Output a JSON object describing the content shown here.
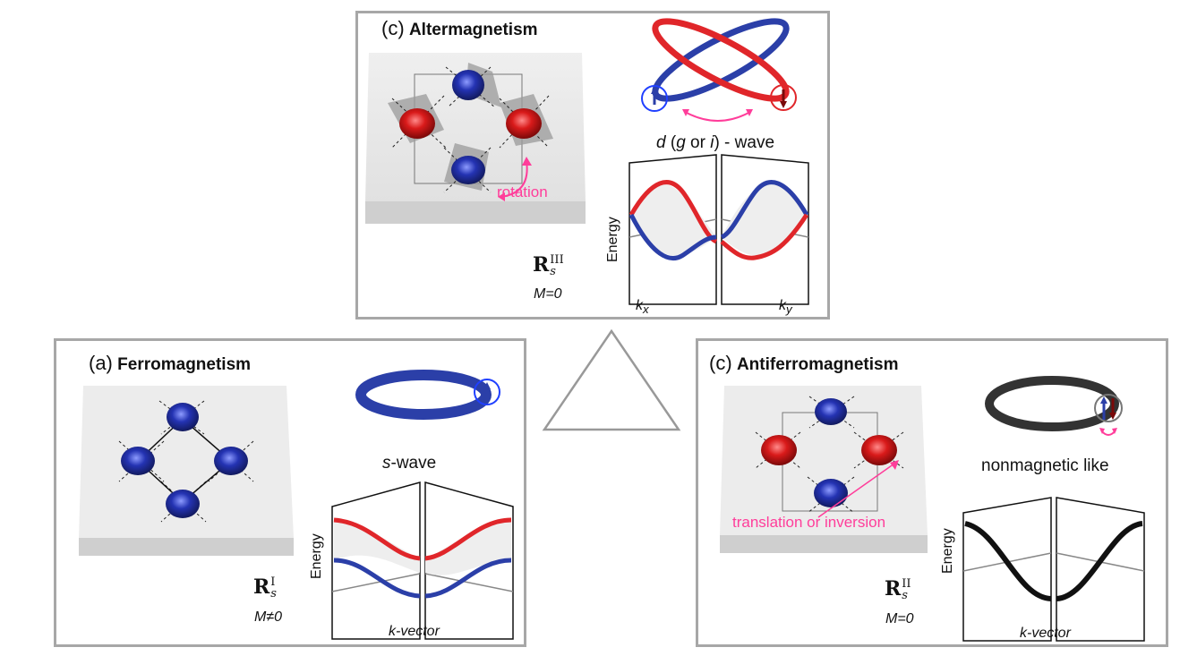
{
  "colors": {
    "spin_up": "#2b3fa8",
    "spin_down": "#e0262a",
    "neutral_band": "#111111",
    "annotation": "#ff3d9a",
    "frame": "#a7a7a7"
  },
  "altermagnetism": {
    "tag": "(c)",
    "title": "Altermagnetism",
    "wave": "d (g or i) - wave",
    "wave_parts": {
      "d": "d",
      "open": " (",
      "g": "g",
      "or": " or ",
      "i": "i",
      "close": ") - wave"
    },
    "symmetry": "R_s^III",
    "symmetry_parts": {
      "base": "R",
      "sup": "III",
      "sub": "s"
    },
    "magnetization": "M=0",
    "annotation": "rotation",
    "y_axis": "Energy",
    "x_left": "kx",
    "x_left_parts": {
      "k": "k",
      "sub": "x"
    },
    "x_right": "ky",
    "x_right_parts": {
      "k": "k",
      "sub": "y"
    }
  },
  "ferromagnetism": {
    "tag": "(a)",
    "title": "Ferromagnetism",
    "wave": "s-wave",
    "wave_parts": {
      "s": "s",
      "rest": "-wave"
    },
    "symmetry": "R_s^I",
    "symmetry_parts": {
      "base": "R",
      "sup": "I",
      "sub": "s"
    },
    "magnetization": "M≠0",
    "y_axis": "Energy",
    "x_axis": "k-vector"
  },
  "antiferromagnetism": {
    "tag": "(c)",
    "title": "Antiferromagnetism",
    "wave": "nonmagnetic like",
    "symmetry": "R_s^II",
    "symmetry_parts": {
      "base": "R",
      "sup": "II",
      "sub": "s"
    },
    "magnetization": "M=0",
    "annotation": "translation or inversion",
    "y_axis": "Energy",
    "x_axis": "k-vector"
  }
}
